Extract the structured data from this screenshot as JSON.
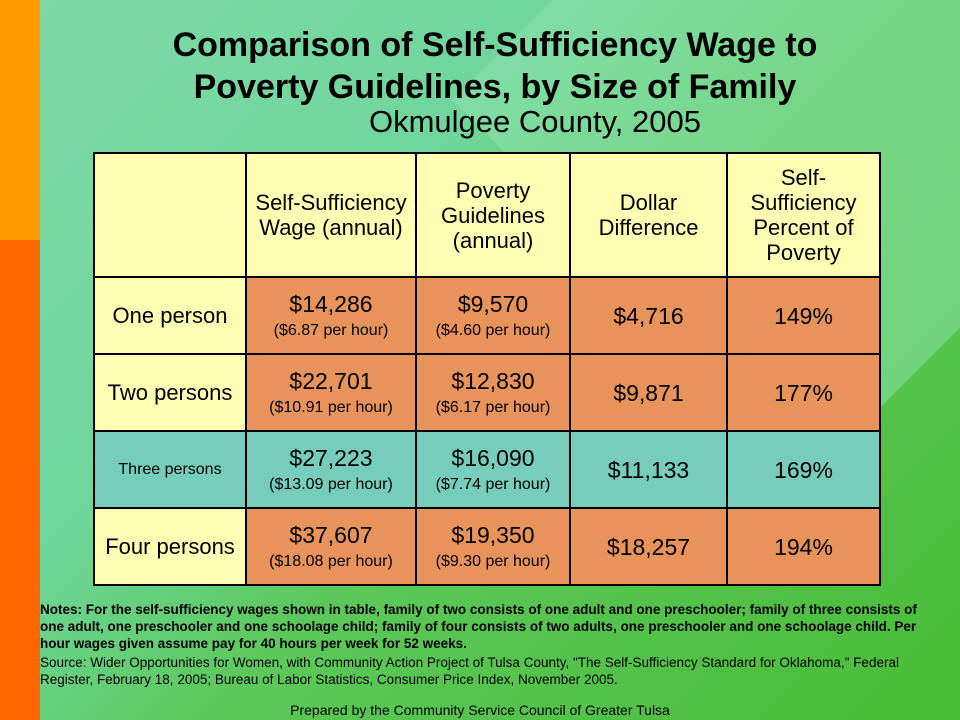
{
  "title_line1": "Comparison of Self-Sufficiency Wage to",
  "title_line2": "Poverty Guidelines, by Size of Family",
  "subtitle": "Okmulgee County, 2005",
  "table": {
    "headers": [
      "",
      "Self-Sufficiency Wage (annual)",
      "Poverty Guidelines (annual)",
      "Dollar Difference",
      "Self-Sufficiency Percent of Poverty"
    ],
    "rows": [
      {
        "label": "One person",
        "wage": "$14,286",
        "wage_hourly": "($6.87 per hour)",
        "poverty": "$9,570",
        "poverty_hourly": "($4.60 per hour)",
        "difference": "$4,716",
        "percent": "149%"
      },
      {
        "label": "Two persons",
        "wage": "$22,701",
        "wage_hourly": "($10.91 per hour)",
        "poverty": "$12,830",
        "poverty_hourly": "($6.17 per hour)",
        "difference": "$9,871",
        "percent": "177%"
      },
      {
        "label": "Three persons",
        "wage": "$27,223",
        "wage_hourly": "($13.09 per hour)",
        "poverty": "$16,090",
        "poverty_hourly": "($7.74 per hour)",
        "difference": "$11,133",
        "percent": "169%"
      },
      {
        "label": "Four persons",
        "wage": "$37,607",
        "wage_hourly": "($18.08 per hour)",
        "poverty": "$19,350",
        "poverty_hourly": "($9.30 per hour)",
        "difference": "$18,257",
        "percent": "194%"
      }
    ]
  },
  "notes": "Notes: For the self-sufficiency wages shown in table, family of two consists of one adult and one preschooler; family of three consists of one adult, one preschooler and one schoolage child; family of four consists of two adults, one preschooler and one schoolage child. Per hour wages given assume pay for 40 hours per week for 52 weeks.",
  "source": "Source: Wider Opportunities for Women, with Community Action Project of Tulsa County, \"The Self-Sufficiency Standard for Oklahoma,\" Federal Register, February 18, 2005; Bureau of Labor Statistics, Consumer Price Index, November 2005.",
  "prepared_by": "Prepared by the Community Service Council of Greater Tulsa",
  "colors": {
    "header_fill": "#ffffb3",
    "highlight_row_fill": "#76cdbb",
    "data_cell_fill": "#e8935a",
    "accent_bar_top": "#ff9a00",
    "accent_bar_bottom": "#ff6600"
  }
}
